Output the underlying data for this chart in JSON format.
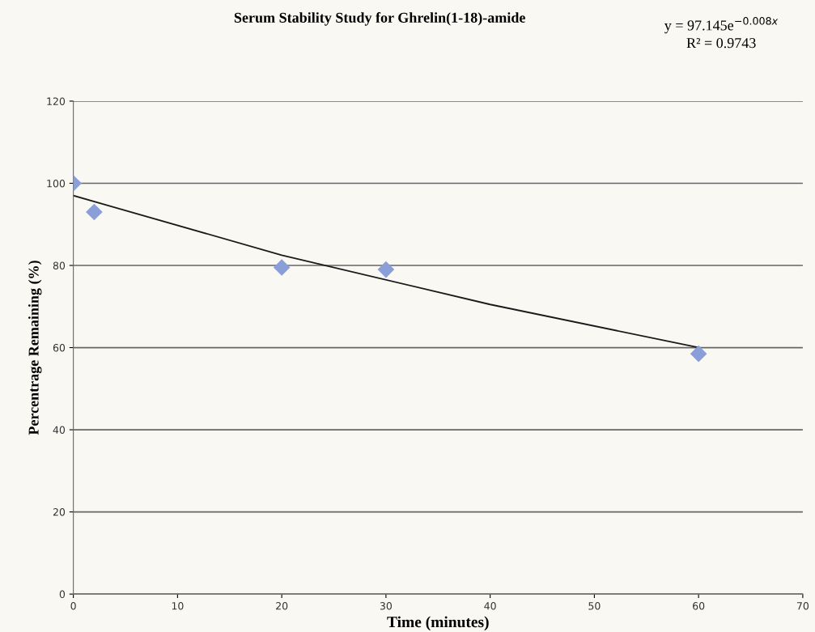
{
  "chart_data": {
    "type": "scatter",
    "title": "Serum Stability Study for Ghrelin(1-18)-amide",
    "xlabel": "Time (minutes)",
    "ylabel": "Percentrage Remaining (%)",
    "annotations": [
      "y = 97.145e$^{−0.008x}$",
      "R² = 0.9743"
    ],
    "series": [
      {
        "color": "#8a9fd8",
        "x": [
          0,
          2,
          20,
          30,
          60
        ],
        "values": [
          100,
          93,
          79.5,
          79,
          58.5
        ],
        "marker": "diamond"
      },
      {
        "type": "line",
        "color": "#1a1a1a",
        "x": [
          0,
          20,
          40,
          60
        ],
        "values": [
          97,
          82.5,
          70.5,
          60
        ],
        "line_style": "solid",
        "marker": "none"
      }
    ],
    "xlim": [
      0,
      70
    ],
    "xticks": [
      0,
      10,
      20,
      30,
      40,
      50,
      60,
      70
    ],
    "ylim": [
      0,
      120
    ],
    "yticks": [
      0,
      20,
      40,
      60,
      80,
      100,
      120
    ],
    "grid": "y",
    "legend": false
  }
}
